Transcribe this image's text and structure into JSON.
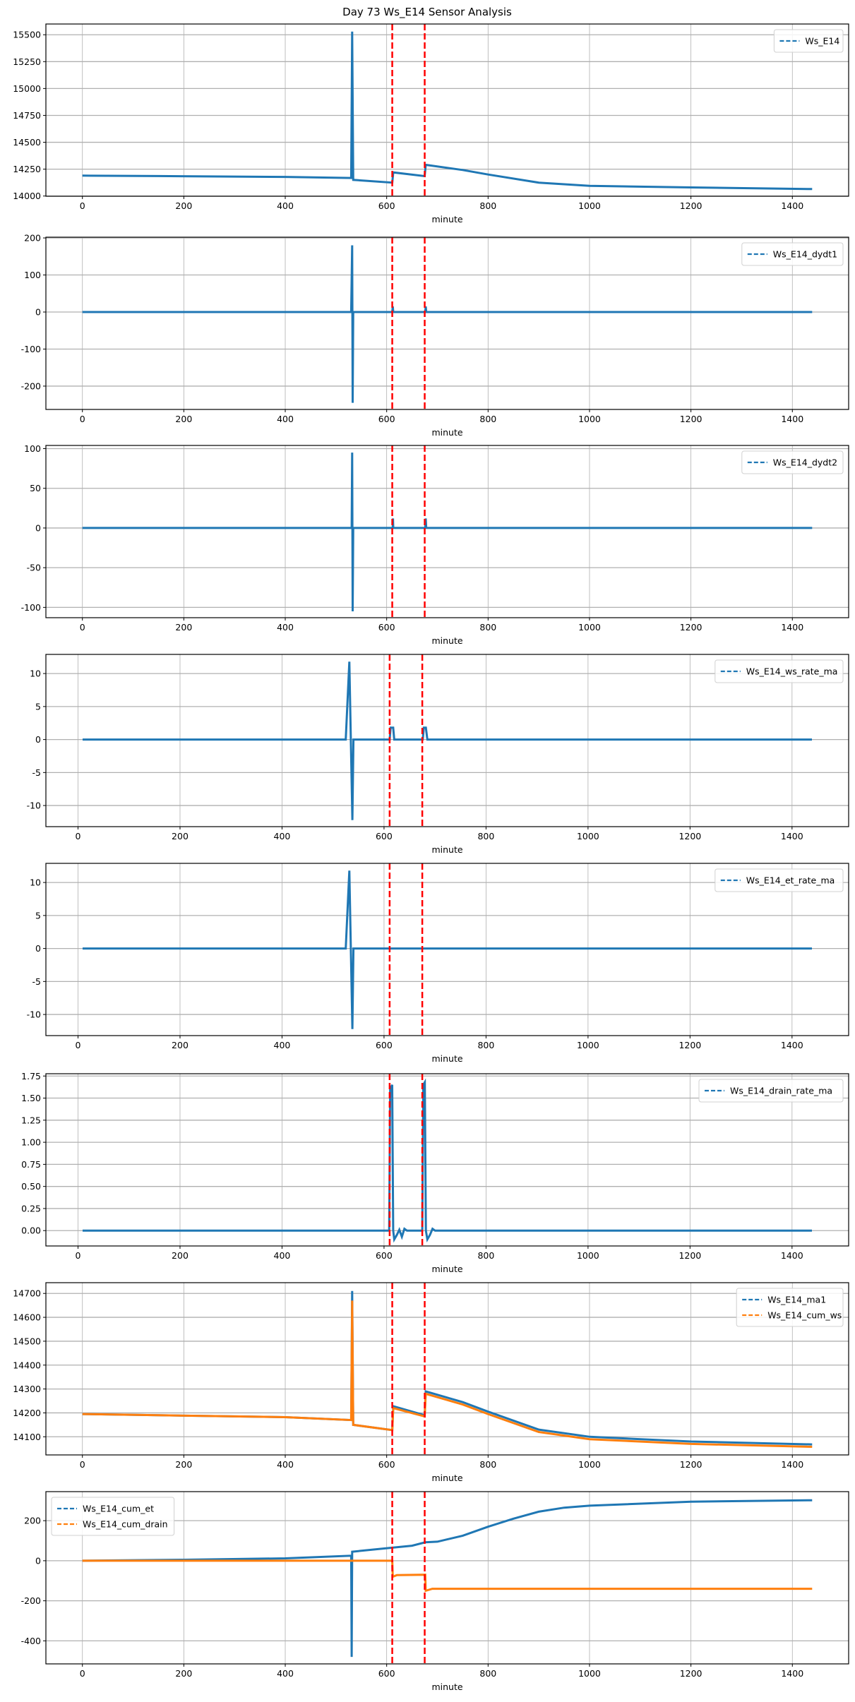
{
  "figure": {
    "title": "Day 73 Ws_E14 Sensor Analysis"
  },
  "colors": {
    "blue": "#1f77b4",
    "orange": "#ff7f0e",
    "marker_red": "#ff0000",
    "grid": "#b0b0b0"
  },
  "chart_data": [
    {
      "type": "line",
      "xlabel": "minute",
      "xlim": [
        -72,
        1511
      ],
      "ylim": [
        13998,
        15600
      ],
      "xticks": [
        0,
        200,
        400,
        600,
        800,
        1000,
        1200,
        1400
      ],
      "xtick_labels": [
        "0",
        "200",
        "400",
        "600",
        "800",
        "1000",
        "1200",
        "1400"
      ],
      "yticks": [
        14000,
        14250,
        14500,
        14750,
        15000,
        15250,
        15500
      ],
      "ytick_labels": [
        "14000",
        "14250",
        "14500",
        "14750",
        "15000",
        "15250",
        "15500"
      ],
      "legend_loc": "upper-right",
      "grid": true,
      "vlines": [
        611,
        675
      ],
      "series": [
        {
          "name": "Ws_E14",
          "color": "#1f77b4",
          "points": [
            [
              0,
              14190
            ],
            [
              150,
              14186
            ],
            [
              400,
              14178
            ],
            [
              530,
              14168
            ],
            [
              532,
              15530
            ],
            [
              534,
              14150
            ],
            [
              611,
              14125
            ],
            [
              613,
              14220
            ],
            [
              675,
              14185
            ],
            [
              677,
              14290
            ],
            [
              750,
              14242
            ],
            [
              800,
              14200
            ],
            [
              900,
              14125
            ],
            [
              1000,
              14095
            ],
            [
              1200,
              14080
            ],
            [
              1439,
              14065
            ]
          ]
        }
      ]
    },
    {
      "type": "line",
      "xlabel": "minute",
      "xlim": [
        -72,
        1511
      ],
      "ylim": [
        -263,
        202
      ],
      "xticks": [
        0,
        200,
        400,
        600,
        800,
        1000,
        1200,
        1400
      ],
      "xtick_labels": [
        "0",
        "200",
        "400",
        "600",
        "800",
        "1000",
        "1200",
        "1400"
      ],
      "yticks": [
        -200,
        -100,
        0,
        100,
        200
      ],
      "ytick_labels": [
        "-200",
        "-100",
        "0",
        "100",
        "200"
      ],
      "legend_loc": "upper-right",
      "grid": true,
      "vlines": [
        611,
        675
      ],
      "series": [
        {
          "name": "Ws_E14_dydt1",
          "color": "#1f77b4",
          "points": [
            [
              0,
              0
            ],
            [
              530,
              0
            ],
            [
              532,
              180
            ],
            [
              533,
              -245
            ],
            [
              534,
              0
            ],
            [
              611,
              0
            ],
            [
              612,
              15
            ],
            [
              613,
              0
            ],
            [
              676,
              0
            ],
            [
              677,
              15
            ],
            [
              678,
              0
            ],
            [
              1439,
              0
            ]
          ]
        }
      ]
    },
    {
      "type": "line",
      "xlabel": "minute",
      "xlim": [
        -72,
        1511
      ],
      "ylim": [
        -113,
        104
      ],
      "xticks": [
        0,
        200,
        400,
        600,
        800,
        1000,
        1200,
        1400
      ],
      "xtick_labels": [
        "0",
        "200",
        "400",
        "600",
        "800",
        "1000",
        "1200",
        "1400"
      ],
      "yticks": [
        -100,
        -50,
        0,
        50,
        100
      ],
      "ytick_labels": [
        "-100",
        "-50",
        "0",
        "50",
        "100"
      ],
      "legend_loc": "upper-right",
      "grid": true,
      "vlines": [
        611,
        675
      ],
      "series": [
        {
          "name": "Ws_E14_dydt2",
          "color": "#1f77b4",
          "points": [
            [
              0,
              0
            ],
            [
              531,
              0
            ],
            [
              532,
              95
            ],
            [
              533,
              -105
            ],
            [
              534,
              0
            ],
            [
              612,
              0
            ],
            [
              612.5,
              12
            ],
            [
              613,
              0
            ],
            [
              676,
              0
            ],
            [
              677,
              12
            ],
            [
              678,
              0
            ],
            [
              1439,
              0
            ]
          ]
        }
      ]
    },
    {
      "type": "line",
      "xlabel": "minute",
      "xlim": [
        -63,
        1511
      ],
      "ylim": [
        -13.2,
        12.9
      ],
      "xticks": [
        0,
        200,
        400,
        600,
        800,
        1000,
        1200,
        1400
      ],
      "xtick_labels": [
        "0",
        "200",
        "400",
        "600",
        "800",
        "1000",
        "1200",
        "1400"
      ],
      "yticks": [
        -10,
        -5,
        0,
        5,
        10
      ],
      "ytick_labels": [
        "-10",
        "-5",
        "0",
        "5",
        "10"
      ],
      "legend_loc": "upper-right",
      "grid": true,
      "vlines": [
        611,
        675
      ],
      "series": [
        {
          "name": "Ws_E14_ws_rate_ma",
          "color": "#1f77b4",
          "points": [
            [
              9,
              0
            ],
            [
              525,
              0
            ],
            [
              532,
              11.8
            ],
            [
              535,
              -0.5
            ],
            [
              538,
              -12.2
            ],
            [
              540,
              0
            ],
            [
              611,
              0
            ],
            [
              613,
              1.8
            ],
            [
              618,
              1.8
            ],
            [
              620,
              0
            ],
            [
              676,
              0
            ],
            [
              678,
              1.8
            ],
            [
              682,
              1.8
            ],
            [
              685,
              0
            ],
            [
              1439,
              0
            ]
          ]
        }
      ]
    },
    {
      "type": "line",
      "xlabel": "minute",
      "xlim": [
        -63,
        1511
      ],
      "ylim": [
        -13.2,
        12.9
      ],
      "xticks": [
        0,
        200,
        400,
        600,
        800,
        1000,
        1200,
        1400
      ],
      "xtick_labels": [
        "0",
        "200",
        "400",
        "600",
        "800",
        "1000",
        "1200",
        "1400"
      ],
      "yticks": [
        -10,
        -5,
        0,
        5,
        10
      ],
      "ytick_labels": [
        "-10",
        "-5",
        "0",
        "5",
        "10"
      ],
      "legend_loc": "upper-right",
      "grid": true,
      "vlines": [
        611,
        675
      ],
      "series": [
        {
          "name": "Ws_E14_et_rate_ma",
          "color": "#1f77b4",
          "points": [
            [
              9,
              0
            ],
            [
              525,
              0
            ],
            [
              532,
              11.8
            ],
            [
              535,
              -0.5
            ],
            [
              538,
              -12.2
            ],
            [
              540,
              0
            ],
            [
              1439,
              0
            ]
          ]
        }
      ]
    },
    {
      "type": "line",
      "xlabel": "minute",
      "xlim": [
        -63,
        1511
      ],
      "ylim": [
        -0.174,
        1.776
      ],
      "xticks": [
        0,
        200,
        400,
        600,
        800,
        1000,
        1200,
        1400
      ],
      "xtick_labels": [
        "0",
        "200",
        "400",
        "600",
        "800",
        "1000",
        "1200",
        "1400"
      ],
      "yticks": [
        0,
        0.25,
        0.5,
        0.75,
        1.0,
        1.25,
        1.5,
        1.75
      ],
      "ytick_labels": [
        "0.00",
        "0.25",
        "0.50",
        "0.75",
        "1.00",
        "1.25",
        "1.50",
        "1.75"
      ],
      "legend_loc": "upper-right",
      "grid": true,
      "vlines": [
        611,
        675
      ],
      "series": [
        {
          "name": "Ws_E14_drain_rate_ma",
          "color": "#1f77b4",
          "points": [
            [
              9,
              0
            ],
            [
              610,
              0
            ],
            [
              612,
              1.6
            ],
            [
              616,
              1.65
            ],
            [
              618,
              0
            ],
            [
              620,
              -0.1
            ],
            [
              625,
              -0.05
            ],
            [
              630,
              0.01
            ],
            [
              635,
              -0.07
            ],
            [
              640,
              0.02
            ],
            [
              645,
              0
            ],
            [
              675,
              0
            ],
            [
              677,
              1.65
            ],
            [
              680,
              1.68
            ],
            [
              682,
              0
            ],
            [
              685,
              -0.1
            ],
            [
              690,
              -0.05
            ],
            [
              695,
              0.02
            ],
            [
              700,
              0
            ],
            [
              1439,
              0
            ]
          ]
        }
      ]
    },
    {
      "type": "line",
      "xlabel": "minute",
      "xlim": [
        -72,
        1511
      ],
      "ylim": [
        14024,
        14745
      ],
      "xticks": [
        0,
        200,
        400,
        600,
        800,
        1000,
        1200,
        1400
      ],
      "xtick_labels": [
        "0",
        "200",
        "400",
        "600",
        "800",
        "1000",
        "1200",
        "1400"
      ],
      "yticks": [
        14100,
        14200,
        14300,
        14400,
        14500,
        14600,
        14700
      ],
      "ytick_labels": [
        "14100",
        "14200",
        "14300",
        "14400",
        "14500",
        "14600",
        "14700"
      ],
      "legend_loc": "upper-right",
      "grid": true,
      "vlines": [
        611,
        675
      ],
      "series": [
        {
          "name": "Ws_E14_ma1",
          "color": "#1f77b4",
          "points": [
            [
              0,
              14195
            ],
            [
              150,
              14190
            ],
            [
              400,
              14182
            ],
            [
              530,
              14170
            ],
            [
              532,
              14710
            ],
            [
              534,
              14150
            ],
            [
              611,
              14128
            ],
            [
              613,
              14228
            ],
            [
              675,
              14190
            ],
            [
              677,
              14290
            ],
            [
              750,
              14245
            ],
            [
              800,
              14205
            ],
            [
              900,
              14130
            ],
            [
              1000,
              14100
            ],
            [
              1200,
              14080
            ],
            [
              1439,
              14068
            ]
          ]
        },
        {
          "name": "Ws_E14_cum_ws",
          "color": "#ff7f0e",
          "points": [
            [
              0,
              14195
            ],
            [
              150,
              14190
            ],
            [
              400,
              14182
            ],
            [
              530,
              14170
            ],
            [
              532,
              14670
            ],
            [
              534,
              14150
            ],
            [
              611,
              14128
            ],
            [
              613,
              14220
            ],
            [
              675,
              14185
            ],
            [
              677,
              14280
            ],
            [
              750,
              14235
            ],
            [
              800,
              14195
            ],
            [
              900,
              14120
            ],
            [
              1000,
              14090
            ],
            [
              1200,
              14070
            ],
            [
              1439,
              14058
            ]
          ]
        }
      ]
    },
    {
      "type": "line",
      "xlabel": "minute",
      "xlim": [
        -72,
        1511
      ],
      "ylim": [
        -515,
        345
      ],
      "xticks": [
        0,
        200,
        400,
        600,
        800,
        1000,
        1200,
        1400
      ],
      "xtick_labels": [
        "0",
        "200",
        "400",
        "600",
        "800",
        "1000",
        "1200",
        "1400"
      ],
      "yticks": [
        -400,
        -200,
        0,
        200
      ],
      "ytick_labels": [
        "-400",
        "-200",
        "0",
        "200"
      ],
      "legend_loc": "upper-left",
      "grid": true,
      "vlines": [
        611,
        675
      ],
      "series": [
        {
          "name": "Ws_E14_cum_et",
          "color": "#1f77b4",
          "points": [
            [
              0,
              0
            ],
            [
              200,
              5
            ],
            [
              400,
              12
            ],
            [
              530,
              25
            ],
            [
              531,
              -480
            ],
            [
              532,
              45
            ],
            [
              611,
              65
            ],
            [
              650,
              75
            ],
            [
              676,
              92
            ],
            [
              700,
              95
            ],
            [
              750,
              125
            ],
            [
              800,
              170
            ],
            [
              850,
              210
            ],
            [
              900,
              245
            ],
            [
              950,
              265
            ],
            [
              1000,
              275
            ],
            [
              1200,
              295
            ],
            [
              1439,
              302
            ]
          ]
        },
        {
          "name": "Ws_E14_cum_drain",
          "color": "#ff7f0e",
          "points": [
            [
              0,
              0
            ],
            [
              611,
              0
            ],
            [
              612,
              -80
            ],
            [
              620,
              -72
            ],
            [
              676,
              -70
            ],
            [
              677,
              -150
            ],
            [
              690,
              -140
            ],
            [
              1439,
              -140
            ]
          ]
        }
      ]
    }
  ]
}
